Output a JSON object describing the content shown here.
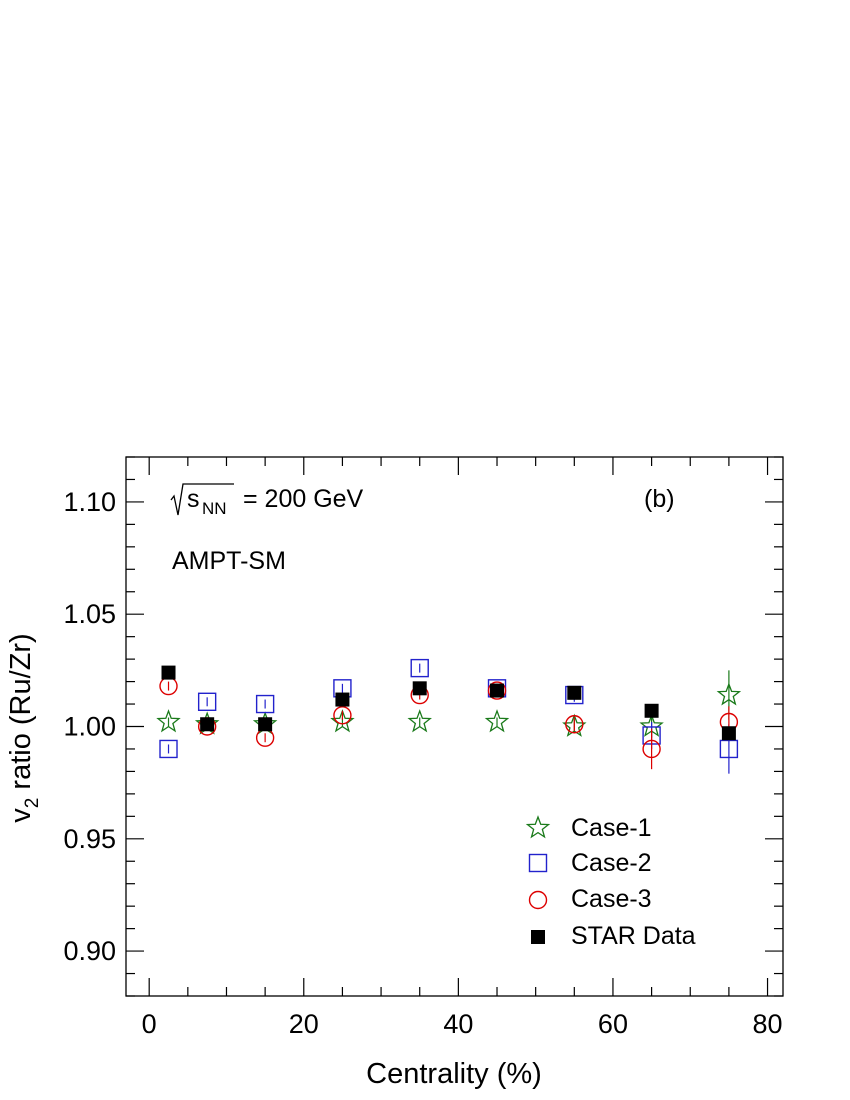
{
  "chart_data": {
    "type": "scatter",
    "energy_label": "= 200 GeV",
    "energy_symbol": "s",
    "energy_subscript": "NN",
    "panel_label": "(b)",
    "model_label": "AMPT-SM",
    "xlabel": "Centrality (%)",
    "ylabel_main": "v",
    "ylabel_sub": "2",
    "ylabel_rest": " ratio (Ru/Zr)",
    "xlim": [
      -3,
      82
    ],
    "ylim": [
      0.88,
      1.12
    ],
    "x_ticks": [
      0,
      20,
      40,
      60,
      80
    ],
    "x_tick_labels": [
      "0",
      "20",
      "40",
      "60",
      "80"
    ],
    "y_ticks": [
      0.9,
      0.95,
      1.0,
      1.05,
      1.1
    ],
    "y_tick_labels": [
      "0.90",
      "0.95",
      "1.00",
      "1.05",
      "1.10"
    ],
    "legend_position": "bottom-right",
    "series": [
      {
        "name": "Case-1",
        "marker": "star-open",
        "color": "#1a7a1a",
        "x": [
          2.5,
          7.5,
          15,
          25,
          35,
          45,
          55,
          65,
          75
        ],
        "y": [
          1.002,
          1.001,
          1.001,
          1.002,
          1.002,
          1.002,
          1.0,
          1.0,
          1.014
        ],
        "err": [
          0.002,
          0.002,
          0.002,
          0.002,
          0.002,
          0.002,
          0.003,
          0.005,
          0.011
        ]
      },
      {
        "name": "Case-2",
        "marker": "square-open",
        "color": "#2222cc",
        "x": [
          2.5,
          7.5,
          15,
          25,
          35,
          45,
          55,
          65,
          75
        ],
        "y": [
          0.99,
          1.011,
          1.01,
          1.017,
          1.026,
          1.017,
          1.014,
          0.996,
          0.99
        ],
        "err": [
          0.002,
          0.002,
          0.002,
          0.002,
          0.002,
          0.002,
          0.003,
          0.006,
          0.011
        ]
      },
      {
        "name": "Case-3",
        "marker": "circle-open",
        "color": "#dd0000",
        "x": [
          2.5,
          7.5,
          15,
          25,
          35,
          45,
          55,
          65,
          75
        ],
        "y": [
          1.018,
          1.0,
          0.995,
          1.005,
          1.014,
          1.016,
          1.001,
          0.99,
          1.002
        ],
        "err": [
          0.002,
          0.002,
          0.002,
          0.002,
          0.002,
          0.002,
          0.003,
          0.009,
          0.007
        ]
      },
      {
        "name": "STAR Data",
        "marker": "square-filled",
        "color": "#000000",
        "x": [
          2.5,
          7.5,
          15,
          25,
          35,
          45,
          55,
          65,
          75
        ],
        "y": [
          1.024,
          1.001,
          1.001,
          1.012,
          1.017,
          1.016,
          1.015,
          1.007,
          0.997
        ],
        "err": [
          0.001,
          0.001,
          0.001,
          0.001,
          0.001,
          0.001,
          0.002,
          0.002,
          0.003
        ]
      }
    ]
  }
}
